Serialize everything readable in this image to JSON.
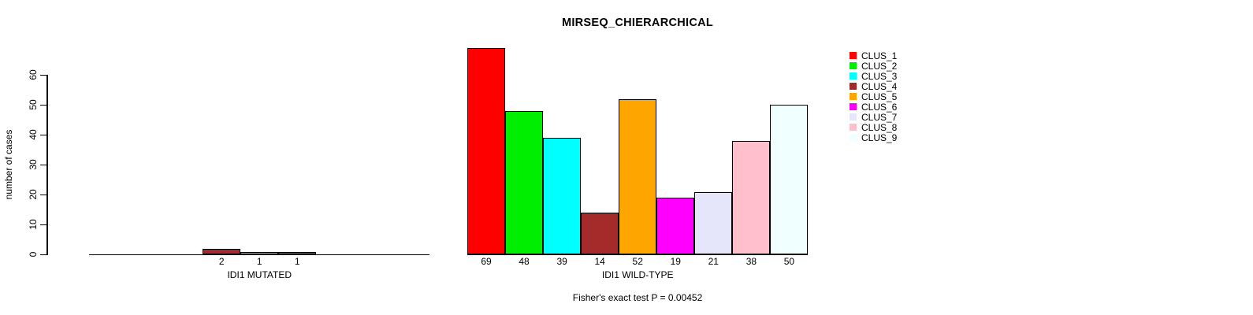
{
  "chart_data": {
    "type": "bar",
    "title": "MIRSEQ_CHIERARCHICAL",
    "ylabel": "number of cases",
    "xlabel": "",
    "ylim": [
      0,
      60
    ],
    "yticks": [
      0,
      10,
      20,
      30,
      40,
      50,
      60
    ],
    "grid": false,
    "legend_position": "right",
    "annotation": "Fisher's exact test P = 0.00452",
    "series": [
      {
        "name": "CLUS_1",
        "color": "#FF0000"
      },
      {
        "name": "CLUS_2",
        "color": "#00EE00"
      },
      {
        "name": "CLUS_3",
        "color": "#00FFFF"
      },
      {
        "name": "CLUS_4",
        "color": "#A52A2A"
      },
      {
        "name": "CLUS_5",
        "color": "#FFA500"
      },
      {
        "name": "CLUS_6",
        "color": "#FF00FF"
      },
      {
        "name": "CLUS_7",
        "color": "#E6E6FA"
      },
      {
        "name": "CLUS_8",
        "color": "#FFC0CB"
      },
      {
        "name": "CLUS_9",
        "color": "#F0FFFF"
      }
    ],
    "groups": [
      {
        "label": "IDI1 MUTATED",
        "values": [
          0,
          0,
          0,
          2,
          1,
          1,
          0,
          0,
          0
        ]
      },
      {
        "label": "IDI1 WILD-TYPE",
        "values": [
          69,
          48,
          39,
          14,
          52,
          19,
          21,
          38,
          50
        ]
      }
    ],
    "bar_value_labels": "shown under each nonzero bar"
  }
}
